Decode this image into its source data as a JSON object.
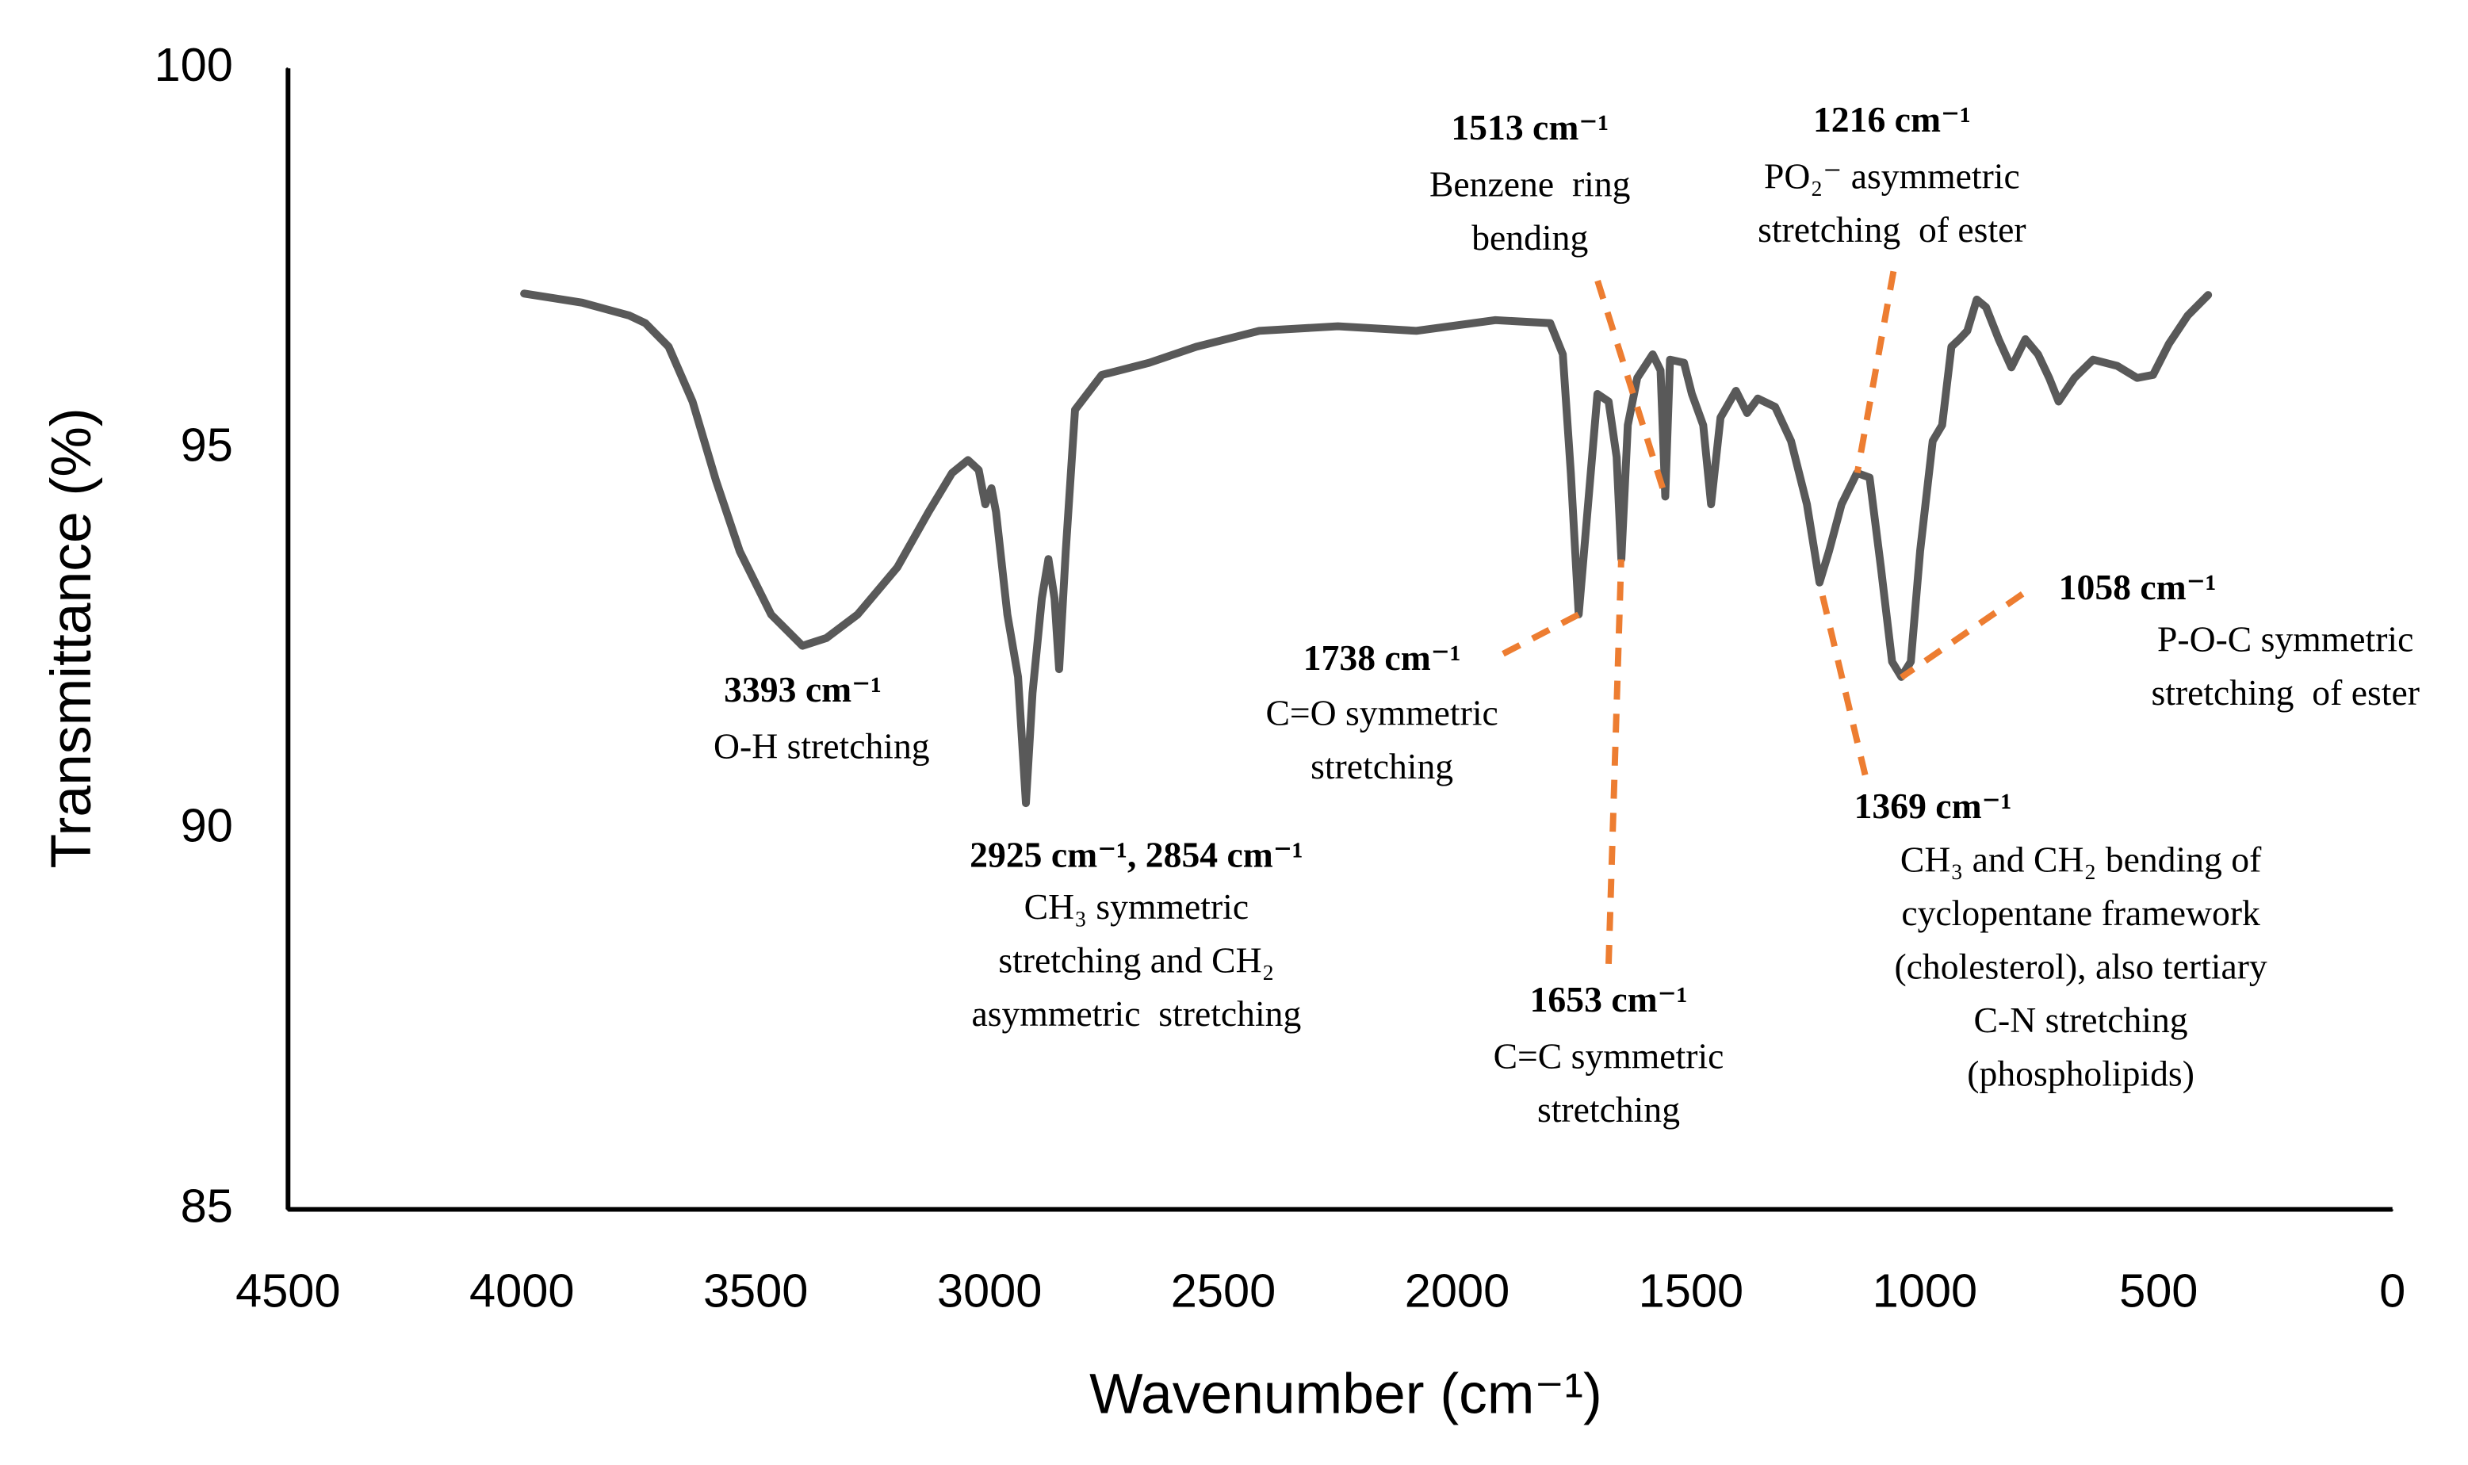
{
  "chart_data": {
    "type": "line",
    "x_label": "Wavenumber (cm⁻¹)",
    "y_label": "Transmittance (%)",
    "xlim": [
      4500,
      0
    ],
    "ylim": [
      85,
      100
    ],
    "xticks": [
      4500,
      4000,
      3500,
      3000,
      2500,
      2000,
      1500,
      1000,
      500,
      0
    ],
    "yticks": [
      85,
      90,
      95,
      100
    ],
    "x": [
      3995,
      3871,
      3770,
      3736,
      3686,
      3635,
      3585,
      3534,
      3467,
      3400,
      3349,
      3282,
      3197,
      3130,
      3080,
      3046,
      3023,
      3009,
      2996,
      2986,
      2962,
      2939,
      2922,
      2908,
      2888,
      2874,
      2861,
      2851,
      2837,
      2817,
      2760,
      2659,
      2558,
      2423,
      2255,
      2087,
      1918,
      1801,
      1774,
      1757,
      1740,
      1723,
      1700,
      1676,
      1659,
      1649,
      1635,
      1615,
      1582,
      1565,
      1555,
      1545,
      1515,
      1498,
      1474,
      1457,
      1437,
      1404,
      1380,
      1357,
      1320,
      1286,
      1252,
      1225,
      1205,
      1178,
      1145,
      1118,
      1094,
      1070,
      1050,
      1030,
      1010,
      983,
      963,
      943,
      926,
      909,
      889,
      869,
      842,
      815,
      785,
      758,
      734,
      714,
      680,
      640,
      589,
      546,
      512,
      478,
      438,
      394
    ],
    "series": [
      {
        "name": "Spectrum",
        "color": "#595959",
        "values": [
          97.04,
          96.92,
          96.75,
          96.65,
          96.34,
          95.62,
          94.58,
          93.65,
          92.82,
          92.41,
          92.51,
          92.82,
          93.44,
          94.17,
          94.68,
          94.85,
          94.72,
          94.27,
          94.48,
          94.17,
          92.82,
          92.0,
          90.34,
          91.79,
          93.03,
          93.55,
          93.03,
          92.1,
          93.65,
          95.51,
          95.97,
          96.13,
          96.34,
          96.55,
          96.61,
          96.55,
          96.69,
          96.65,
          96.24,
          94.68,
          92.82,
          94.06,
          95.72,
          95.62,
          94.89,
          93.55,
          95.31,
          95.93,
          96.24,
          96.03,
          94.37,
          96.17,
          96.13,
          95.72,
          95.31,
          94.27,
          95.41,
          95.76,
          95.47,
          95.66,
          95.55,
          95.1,
          94.27,
          93.24,
          93.65,
          94.27,
          94.68,
          94.62,
          93.44,
          92.2,
          92.0,
          92.2,
          93.65,
          95.1,
          95.31,
          96.34,
          96.44,
          96.55,
          96.96,
          96.86,
          96.44,
          96.07,
          96.44,
          96.24,
          95.93,
          95.62,
          95.93,
          96.17,
          96.09,
          95.93,
          95.97,
          96.38,
          96.75,
          97.02
        ]
      }
    ],
    "annotation_color": "#ed7d31",
    "annotations": [
      {
        "heading": "3393 cm⁻¹",
        "lines": [
          "O-H stretching"
        ]
      },
      {
        "heading": "2925 cm⁻¹, 2854 cm⁻¹",
        "lines": [
          "CH₃ symmetric",
          "stretching and CH₂",
          "asymmetric  stretching"
        ]
      },
      {
        "heading": "1738 cm⁻¹",
        "lines": [
          "C=O symmetric",
          "stretching"
        ]
      },
      {
        "heading": "1653 cm⁻¹",
        "lines": [
          "C=C symmetric",
          "stretching"
        ]
      },
      {
        "heading": "1513 cm⁻¹",
        "lines": [
          "Benzene  ring",
          "bending"
        ]
      },
      {
        "heading": "1216 cm⁻¹",
        "lines": [
          "PO₂⁻ asymmetric",
          "stretching  of ester"
        ]
      },
      {
        "heading": "1058 cm⁻¹",
        "lines": [
          "P-O-C symmetric",
          "stretching  of ester"
        ]
      },
      {
        "heading": "1369 cm⁻¹",
        "lines": [
          "CH₃ and CH₂ bending of",
          "cyclopentane framework",
          "(cholesterol), also tertiary",
          "C-N stretching",
          "(phospholipids)"
        ]
      }
    ]
  }
}
